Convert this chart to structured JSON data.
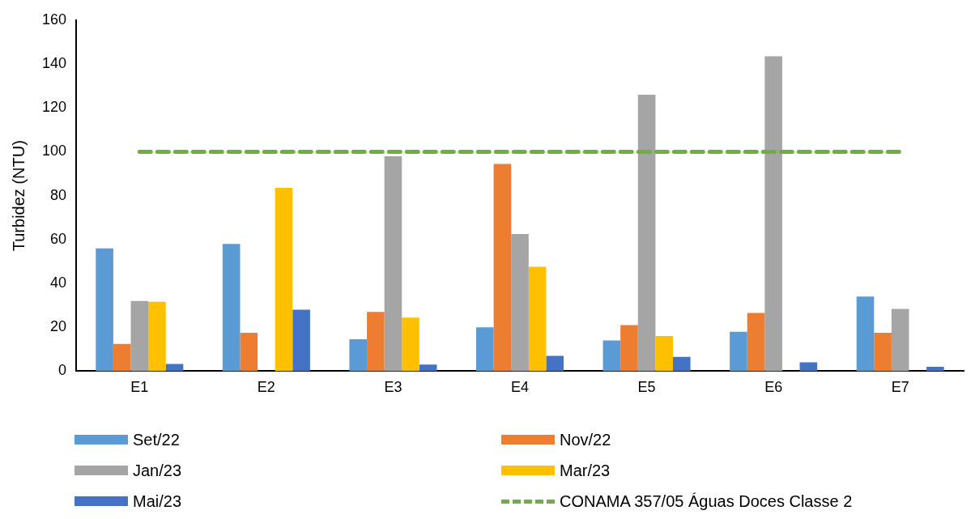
{
  "chart_data": {
    "type": "bar",
    "ylabel": "Turbidez (NTU)",
    "categories": [
      "E1",
      "E2",
      "E3",
      "E4",
      "E5",
      "E6",
      "E7"
    ],
    "series": [
      {
        "name": "Set/22",
        "color": "#5b9bd5",
        "values": [
          56,
          58,
          14.5,
          20,
          14,
          18,
          34
        ]
      },
      {
        "name": "Nov/22",
        "color": "#ed7d31",
        "values": [
          12.4,
          17.5,
          27,
          94.5,
          21,
          26.5,
          17.5
        ]
      },
      {
        "name": "Jan/23",
        "color": "#a5a5a5",
        "values": [
          32,
          null,
          98,
          62.5,
          126,
          143.6,
          28.4
        ]
      },
      {
        "name": "Mar/23",
        "color": "#ffc000",
        "values": [
          31.6,
          83.6,
          24.4,
          47.6,
          16,
          null,
          null
        ]
      },
      {
        "name": "Mai/23",
        "color": "#4472c4",
        "values": [
          3.3,
          28,
          3,
          7,
          6.5,
          4,
          2
        ]
      }
    ],
    "ylim": [
      0,
      160
    ],
    "yticks": [
      0,
      20,
      40,
      60,
      80,
      100,
      120,
      140,
      160
    ],
    "ref_lines": [
      {
        "axis": "y",
        "value": 100,
        "label": "CONAMA 357/05 Águas Doces Classe 2",
        "color": "#70ad47",
        "line_style": "dashed"
      }
    ],
    "grid": false,
    "legend": "bottom"
  }
}
